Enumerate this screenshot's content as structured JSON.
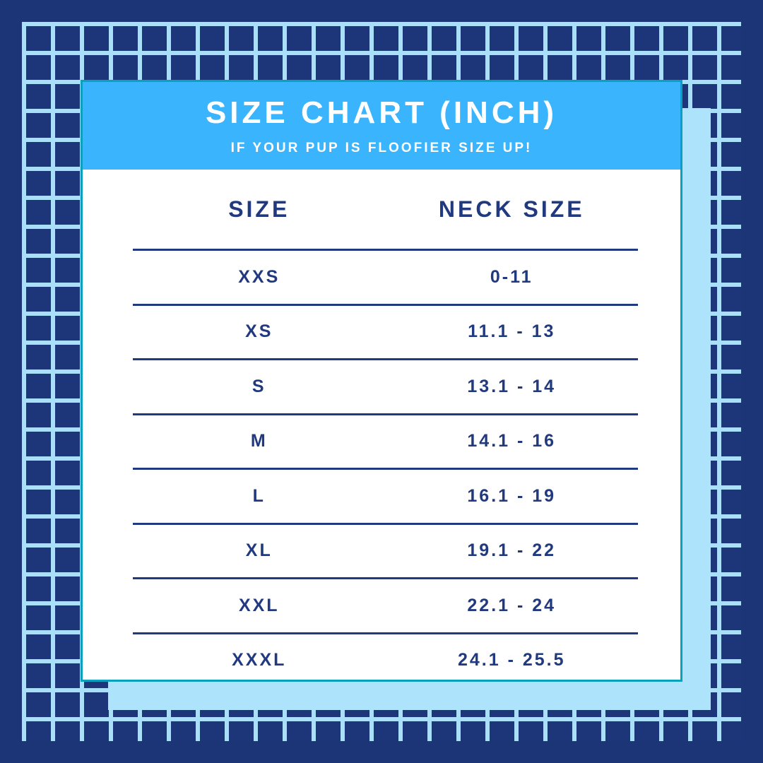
{
  "chart_data": {
    "type": "table",
    "title": "SIZE CHART (INCH)",
    "subtitle": "IF YOUR PUP IS FLOOFIER SIZE UP!",
    "units": "inch",
    "columns": [
      "SIZE",
      "NECK SIZE"
    ],
    "rows": [
      {
        "size": "XXS",
        "neck": "0-11"
      },
      {
        "size": "XS",
        "neck": "11.1 - 13"
      },
      {
        "size": "S",
        "neck": "13.1 - 14"
      },
      {
        "size": "M",
        "neck": "14.1 - 16"
      },
      {
        "size": "L",
        "neck": "16.1 - 19"
      },
      {
        "size": "XL",
        "neck": "19.1 - 22"
      },
      {
        "size": "XXL",
        "neck": "22.1 - 24"
      },
      {
        "size": "XXXL",
        "neck": "24.1 - 25.5"
      }
    ]
  },
  "colors": {
    "background_navy": "#1B3576",
    "grid_cell_navy": "#1C3679",
    "grid_line_blue": "#A9DFF8",
    "shadow_blue": "#AEE4FB",
    "header_blue": "#3AB4FD",
    "teal_border": "#0AA1BE",
    "text_navy": "#21397E",
    "card_white": "#FFFFFF"
  }
}
